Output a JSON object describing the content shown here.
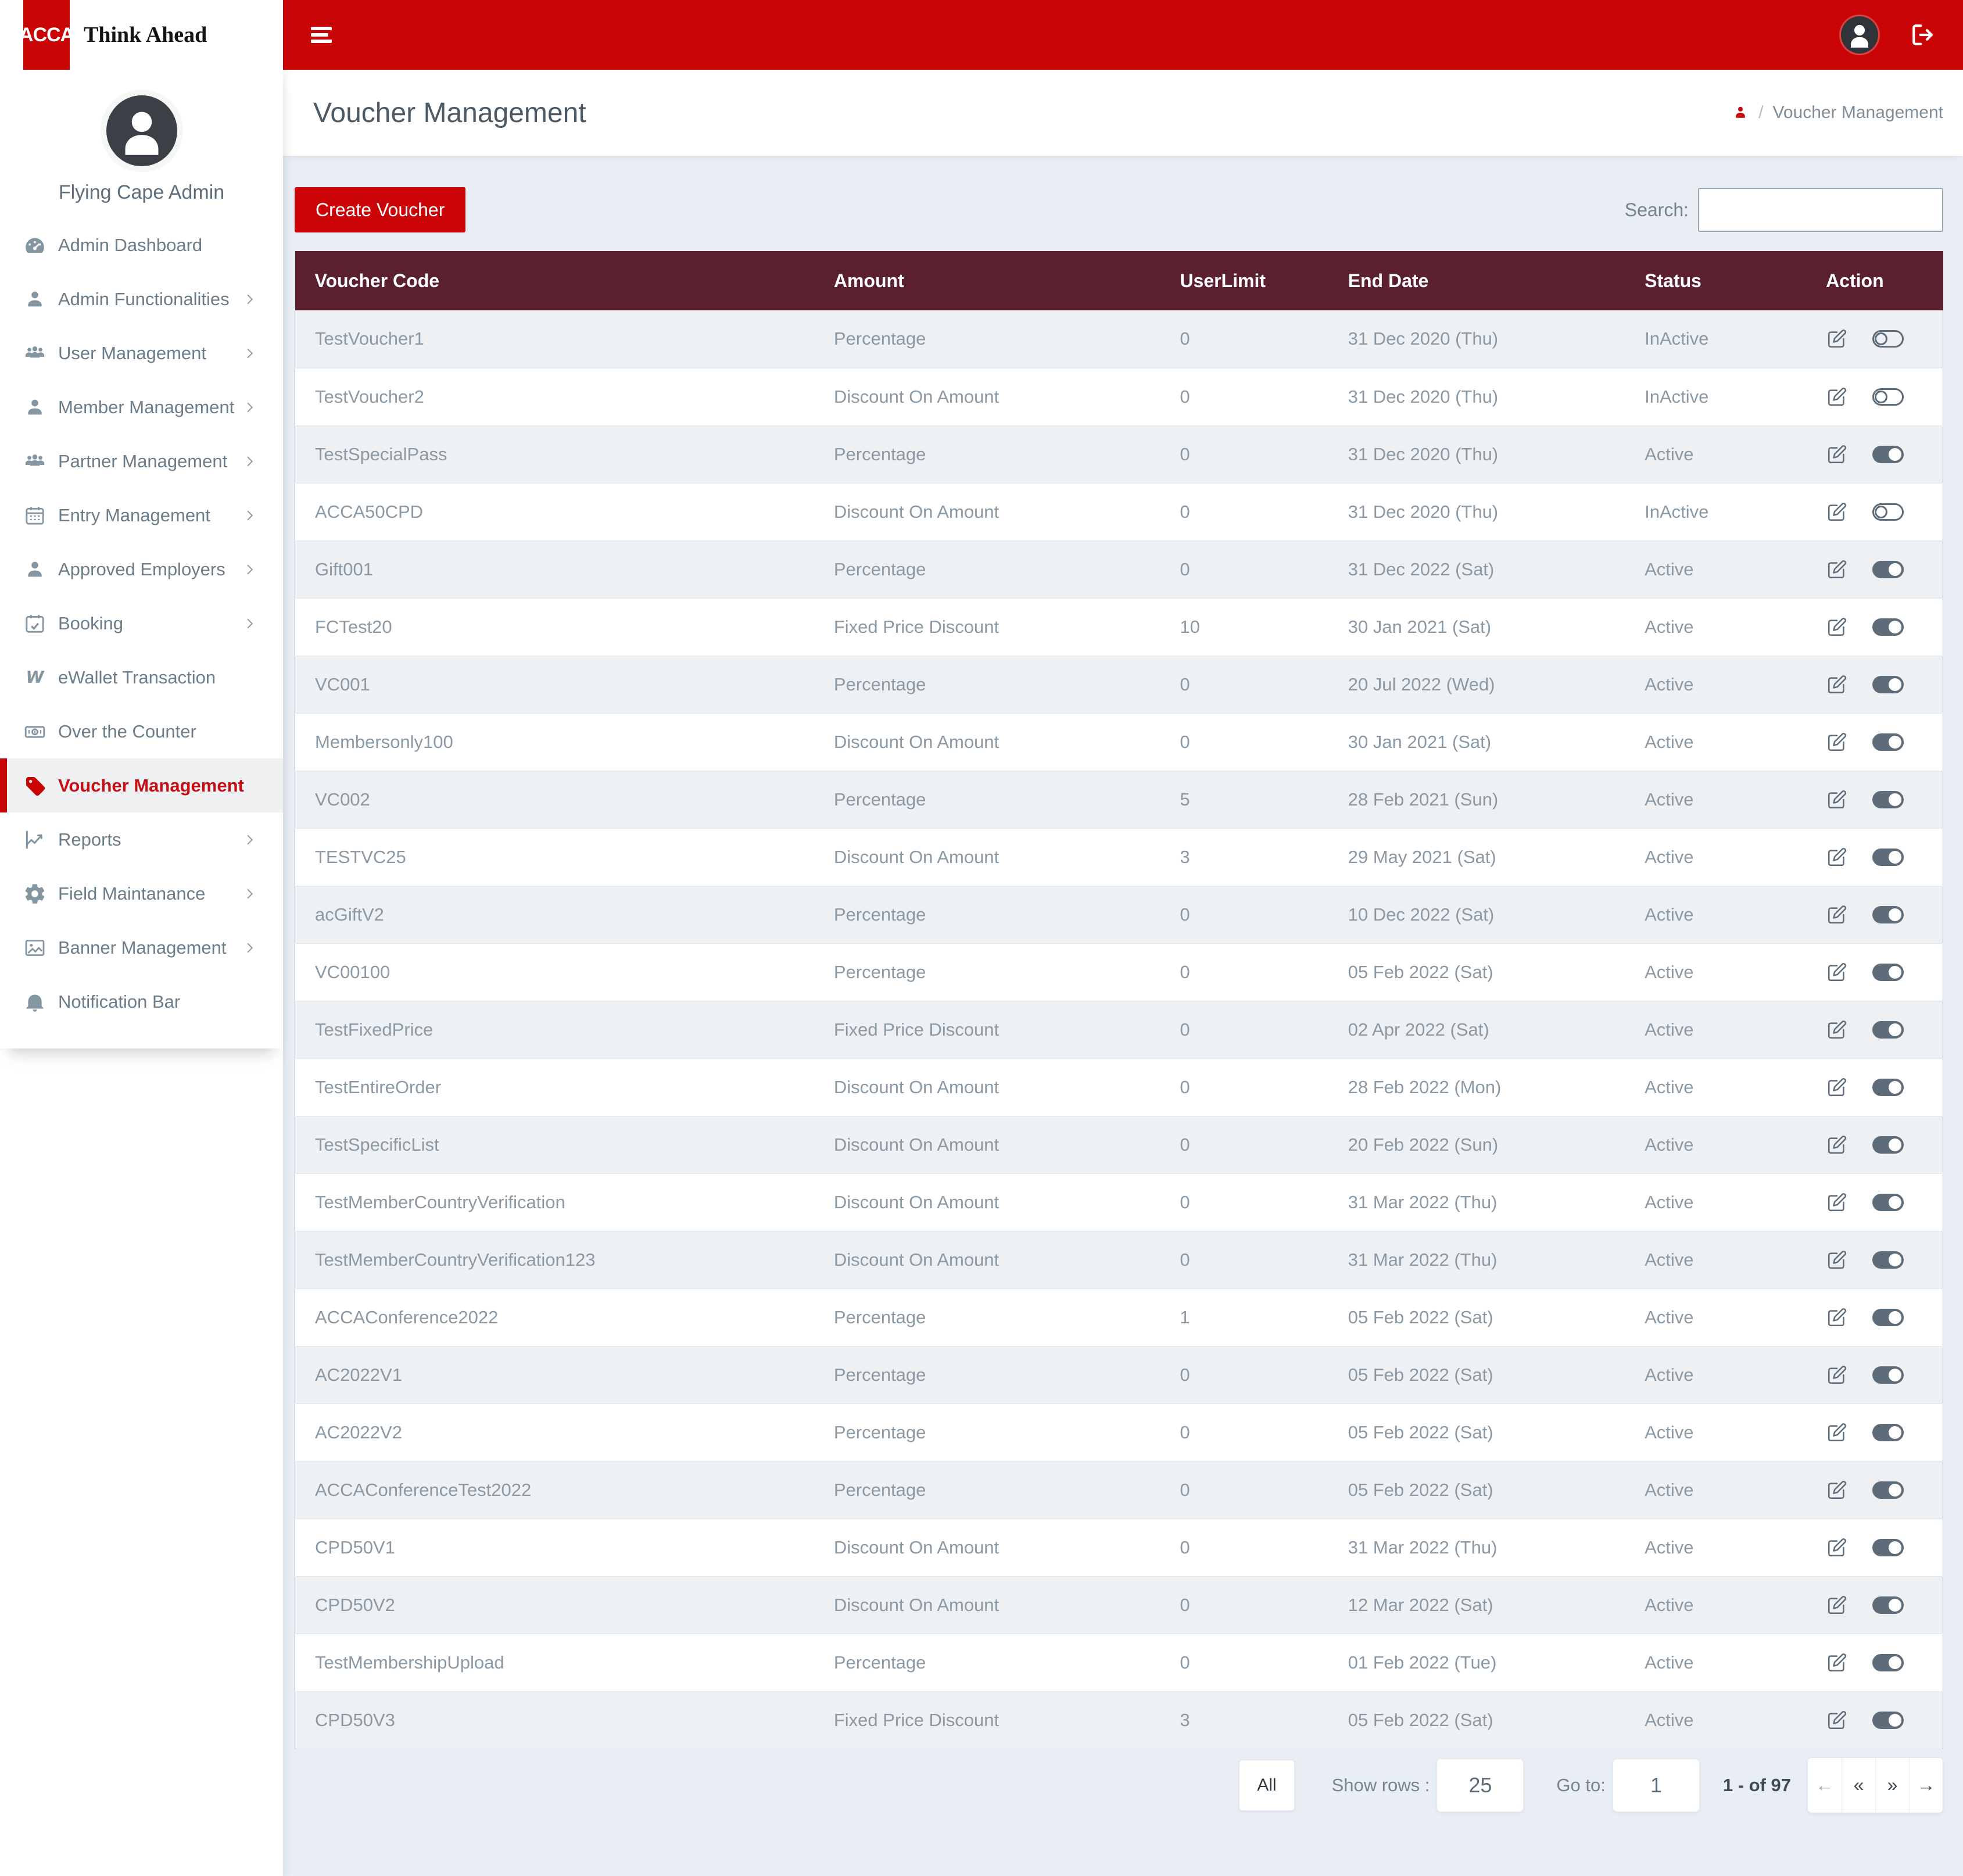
{
  "colors": {
    "brand_red": "#c80404",
    "button_red": "#cb0408",
    "table_header_maroon": "#5a2030",
    "content_background": "#e9eef4",
    "active_item_red": "#c50f14",
    "row_alt_background": "#eef1f4",
    "body_text_gray": "#8b99a4",
    "icon_slate": "#5d6c78"
  },
  "brand": {
    "logo_text": "ACCA",
    "tagline": "Think Ahead"
  },
  "sidebar": {
    "profile_name": "Flying Cape Admin",
    "items": [
      {
        "label": "Admin Dashboard",
        "icon": "dashboard",
        "has_submenu": false,
        "active": false
      },
      {
        "label": "Admin Functionalities",
        "icon": "user",
        "has_submenu": true,
        "active": false
      },
      {
        "label": "User Management",
        "icon": "users",
        "has_submenu": true,
        "active": false
      },
      {
        "label": "Member Management",
        "icon": "user",
        "has_submenu": true,
        "active": false
      },
      {
        "label": "Partner Management",
        "icon": "users",
        "has_submenu": true,
        "active": false
      },
      {
        "label": "Entry Management",
        "icon": "calendar",
        "has_submenu": true,
        "active": false
      },
      {
        "label": "Approved Employers",
        "icon": "user",
        "has_submenu": true,
        "active": false
      },
      {
        "label": "Booking",
        "icon": "calendar-check",
        "has_submenu": true,
        "active": false
      },
      {
        "label": "eWallet Transaction",
        "icon": "wallet",
        "has_submenu": false,
        "active": false
      },
      {
        "label": "Over the Counter",
        "icon": "cash",
        "has_submenu": false,
        "active": false
      },
      {
        "label": "Voucher Management",
        "icon": "tag",
        "has_submenu": false,
        "active": true
      },
      {
        "label": "Reports",
        "icon": "chart",
        "has_submenu": true,
        "active": false
      },
      {
        "label": "Field Maintanance",
        "icon": "gear",
        "has_submenu": true,
        "active": false
      },
      {
        "label": "Banner Management",
        "icon": "image",
        "has_submenu": true,
        "active": false
      },
      {
        "label": "Notification Bar",
        "icon": "bell",
        "has_submenu": false,
        "active": false
      }
    ]
  },
  "page": {
    "title": "Voucher Management",
    "breadcrumb": {
      "separator": "/",
      "current": "Voucher Management"
    }
  },
  "toolbar": {
    "create_button": "Create Voucher",
    "search_label": "Search:",
    "search_value": ""
  },
  "table": {
    "columns": [
      "Voucher Code",
      "Amount",
      "UserLimit",
      "End Date",
      "Status",
      "Action"
    ],
    "rows": [
      {
        "code": "TestVoucher1",
        "amount": "Percentage",
        "user_limit": "0",
        "end_date": "31 Dec 2020 (Thu)",
        "status": "InActive"
      },
      {
        "code": "TestVoucher2",
        "amount": "Discount On Amount",
        "user_limit": "0",
        "end_date": "31 Dec 2020 (Thu)",
        "status": "InActive"
      },
      {
        "code": "TestSpecialPass",
        "amount": "Percentage",
        "user_limit": "0",
        "end_date": "31 Dec 2020 (Thu)",
        "status": "Active"
      },
      {
        "code": "ACCA50CPD",
        "amount": "Discount On Amount",
        "user_limit": "0",
        "end_date": "31 Dec 2020 (Thu)",
        "status": "InActive"
      },
      {
        "code": "Gift001",
        "amount": "Percentage",
        "user_limit": "0",
        "end_date": "31 Dec 2022 (Sat)",
        "status": "Active"
      },
      {
        "code": "FCTest20",
        "amount": "Fixed Price Discount",
        "user_limit": "10",
        "end_date": "30 Jan 2021 (Sat)",
        "status": "Active"
      },
      {
        "code": "VC001",
        "amount": "Percentage",
        "user_limit": "0",
        "end_date": "20 Jul 2022 (Wed)",
        "status": "Active"
      },
      {
        "code": "Membersonly100",
        "amount": "Discount On Amount",
        "user_limit": "0",
        "end_date": "30 Jan 2021 (Sat)",
        "status": "Active"
      },
      {
        "code": "VC002",
        "amount": "Percentage",
        "user_limit": "5",
        "end_date": "28 Feb 2021 (Sun)",
        "status": "Active"
      },
      {
        "code": "TESTVC25",
        "amount": "Discount On Amount",
        "user_limit": "3",
        "end_date": "29 May 2021 (Sat)",
        "status": "Active"
      },
      {
        "code": "acGiftV2",
        "amount": "Percentage",
        "user_limit": "0",
        "end_date": "10 Dec 2022 (Sat)",
        "status": "Active"
      },
      {
        "code": "VC00100",
        "amount": "Percentage",
        "user_limit": "0",
        "end_date": "05 Feb 2022 (Sat)",
        "status": "Active"
      },
      {
        "code": "TestFixedPrice",
        "amount": "Fixed Price Discount",
        "user_limit": "0",
        "end_date": "02 Apr 2022 (Sat)",
        "status": "Active"
      },
      {
        "code": "TestEntireOrder",
        "amount": "Discount On Amount",
        "user_limit": "0",
        "end_date": "28 Feb 2022 (Mon)",
        "status": "Active"
      },
      {
        "code": "TestSpecificList",
        "amount": "Discount On Amount",
        "user_limit": "0",
        "end_date": "20 Feb 2022 (Sun)",
        "status": "Active"
      },
      {
        "code": "TestMemberCountryVerification",
        "amount": "Discount On Amount",
        "user_limit": "0",
        "end_date": "31 Mar 2022 (Thu)",
        "status": "Active"
      },
      {
        "code": "TestMemberCountryVerification123",
        "amount": "Discount On Amount",
        "user_limit": "0",
        "end_date": "31 Mar 2022 (Thu)",
        "status": "Active"
      },
      {
        "code": "ACCAConference2022",
        "amount": "Percentage",
        "user_limit": "1",
        "end_date": "05 Feb 2022 (Sat)",
        "status": "Active"
      },
      {
        "code": "AC2022V1",
        "amount": "Percentage",
        "user_limit": "0",
        "end_date": "05 Feb 2022 (Sat)",
        "status": "Active"
      },
      {
        "code": "AC2022V2",
        "amount": "Percentage",
        "user_limit": "0",
        "end_date": "05 Feb 2022 (Sat)",
        "status": "Active"
      },
      {
        "code": "ACCAConferenceTest2022",
        "amount": "Percentage",
        "user_limit": "0",
        "end_date": "05 Feb 2022 (Sat)",
        "status": "Active"
      },
      {
        "code": "CPD50V1",
        "amount": "Discount On Amount",
        "user_limit": "0",
        "end_date": "31 Mar 2022 (Thu)",
        "status": "Active"
      },
      {
        "code": "CPD50V2",
        "amount": "Discount On Amount",
        "user_limit": "0",
        "end_date": "12 Mar 2022 (Sat)",
        "status": "Active"
      },
      {
        "code": "TestMembershipUpload",
        "amount": "Percentage",
        "user_limit": "0",
        "end_date": "01 Feb 2022 (Tue)",
        "status": "Active"
      },
      {
        "code": "CPD50V3",
        "amount": "Fixed Price Discount",
        "user_limit": "3",
        "end_date": "05 Feb 2022 (Sat)",
        "status": "Active"
      }
    ]
  },
  "pagination": {
    "all_label": "All",
    "show_rows_label": "Show rows :",
    "show_rows_value": "25",
    "goto_label": "Go to:",
    "goto_value": "1",
    "range_text": "1 - of 97",
    "nav_buttons": [
      {
        "glyph": "←",
        "name": "pagination-prev-button",
        "muted": true
      },
      {
        "glyph": "«",
        "name": "pagination-first-button",
        "muted": false
      },
      {
        "glyph": "»",
        "name": "pagination-last-button",
        "muted": false
      },
      {
        "glyph": "→",
        "name": "pagination-next-button",
        "muted": false
      }
    ]
  }
}
